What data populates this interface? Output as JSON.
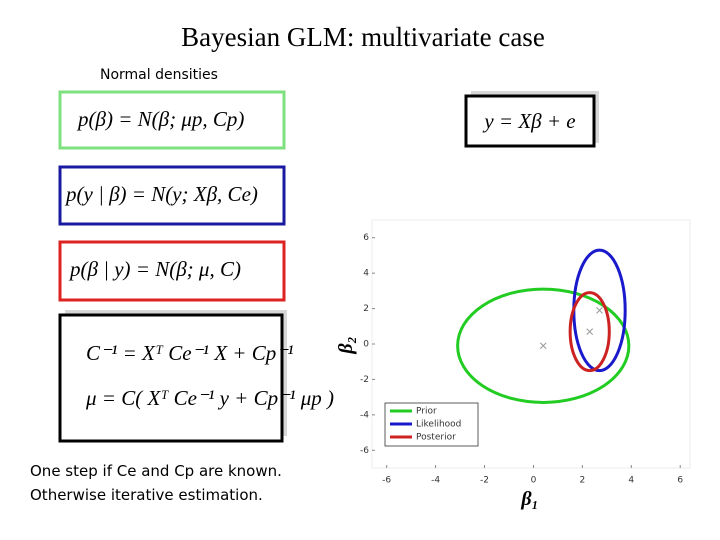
{
  "title": "Bayesian GLM: multivariate case",
  "subtitle": "Normal densities",
  "equations": {
    "prior": "p(β) = N(β; μp, Cp)",
    "likelihood": "p(y | β) = N(y; Xβ, Ce)",
    "posterior": "p(β | y) = N(β; μ, C)",
    "update": [
      "C⁻¹ = Xᵀ Ce⁻¹ X + Cp⁻¹",
      "μ = C( Xᵀ Ce⁻¹ y + Cp⁻¹ μp )"
    ],
    "model": "y = Xβ + e"
  },
  "notes": [
    "One step if Ce and Cp are known.",
    "Otherwise iterative estimation."
  ],
  "chart_data": {
    "type": "ellipse",
    "xlabel": "β₁",
    "ylabel": "β₂",
    "xlim": [
      -6.6,
      6.4
    ],
    "ylim": [
      -7,
      7
    ],
    "xticks": [
      -6,
      -4,
      -2,
      0,
      2,
      4,
      6
    ],
    "yticks": [
      -6,
      -4,
      -2,
      0,
      2,
      4,
      6
    ],
    "legend": "lower left",
    "series": [
      {
        "name": "Prior",
        "color": "#22cc22",
        "cx": 0.4,
        "cy": -0.1,
        "rx": 3.5,
        "ry": 3.2
      },
      {
        "name": "Likelihood",
        "color": "#1a1acc",
        "cx": 2.7,
        "cy": 1.9,
        "rx": 1.05,
        "ry": 3.4
      },
      {
        "name": "Posterior",
        "color": "#cc2222",
        "cx": 2.3,
        "cy": 0.7,
        "rx": 0.8,
        "ry": 2.2
      }
    ]
  }
}
